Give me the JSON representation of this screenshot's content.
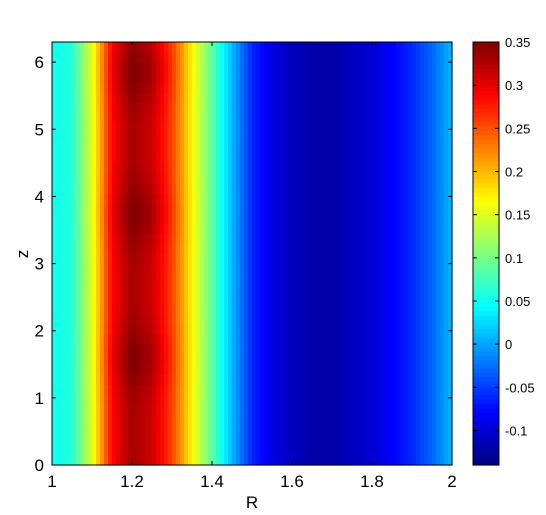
{
  "chart_data": {
    "type": "heatmap",
    "title": "",
    "xlabel": "R",
    "ylabel": "z",
    "xlim": [
      1,
      2
    ],
    "ylim": [
      0,
      6.3
    ],
    "x_ticks": [
      "1",
      "1.2",
      "1.4",
      "1.6",
      "1.8",
      "2"
    ],
    "y_ticks": [
      "0",
      "1",
      "2",
      "3",
      "4",
      "5",
      "6"
    ],
    "colormap": "jet",
    "clim": [
      -0.14,
      0.35
    ],
    "colorbar_ticks": [
      "-0.1",
      "-0.05",
      "0",
      "0.05",
      "0.1",
      "0.15",
      "0.2",
      "0.25",
      "0.3",
      "0.35"
    ],
    "profile_R": [
      1.0,
      1.05,
      1.1,
      1.15,
      1.2,
      1.25,
      1.3,
      1.35,
      1.4,
      1.45,
      1.5,
      1.55,
      1.6,
      1.65,
      1.7,
      1.75,
      1.8,
      1.85,
      1.9,
      1.95,
      2.0
    ],
    "profile_value": [
      0.05,
      0.06,
      0.15,
      0.29,
      0.34,
      0.32,
      0.26,
      0.17,
      0.09,
      0.01,
      -0.06,
      -0.09,
      -0.11,
      -0.12,
      -0.12,
      -0.11,
      -0.1,
      -0.08,
      -0.06,
      -0.03,
      0.01
    ],
    "z_peaks": [
      1.6,
      3.75,
      5.85
    ],
    "peak_amplitude": 0.02
  }
}
